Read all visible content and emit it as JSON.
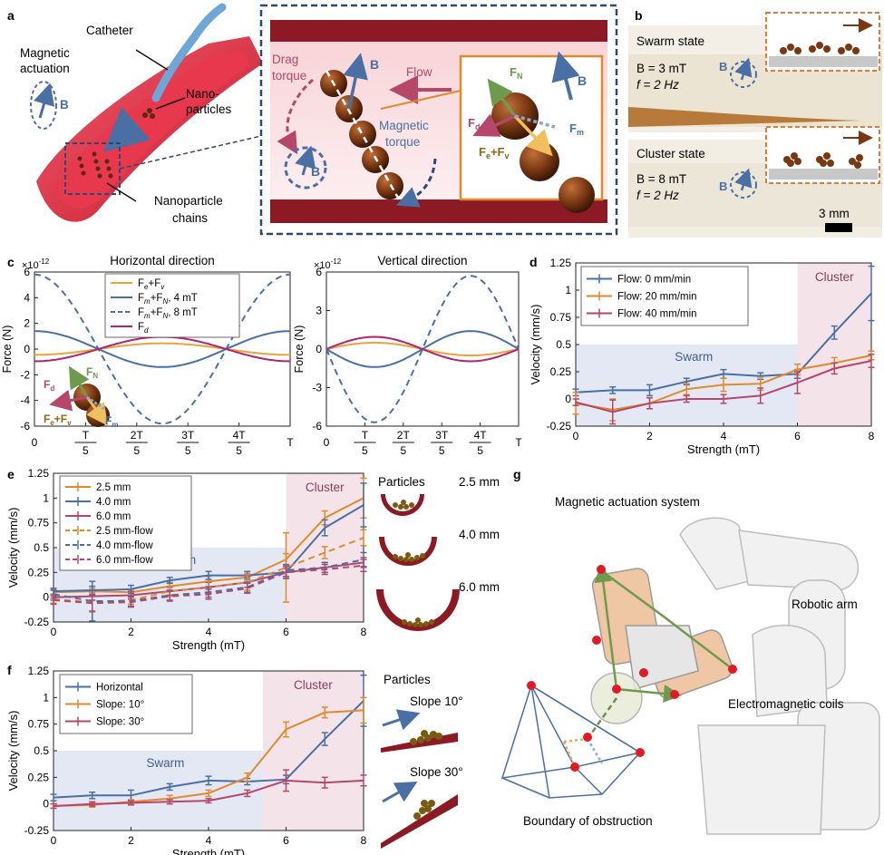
{
  "panel_letters": {
    "a": "a",
    "b": "b",
    "c": "c",
    "d": "d",
    "e": "e",
    "f": "f",
    "g": "g"
  },
  "panel_a": {
    "catheter": "Catheter",
    "magnetic_actuation_line1": "Magnetic",
    "magnetic_actuation_line2": "actuation",
    "b_symbol": "B",
    "nano_line1": "Nano-",
    "nano_line2": "particles",
    "chains_line1": "Nanoparticle",
    "chains_line2": "chains",
    "drag_line1": "Drag",
    "drag_line2": "torque",
    "flow": "Flow",
    "magnetic_torque_line1": "Magnetic",
    "magnetic_torque_line2": "torque",
    "fn": "F",
    "fn_sub": "N",
    "fd": "F",
    "fd_sub": "d",
    "fm": "F",
    "fm_sub": "m",
    "fefv": "F",
    "fefv_sub1": "e",
    "fefv_plus": "+F",
    "fefv_sub2": "v"
  },
  "panel_b": {
    "swarm_state": "Swarm state",
    "swarm_B": "B = 3 mT",
    "swarm_f": "f = 2 Hz",
    "cluster_state": "Cluster state",
    "cluster_B": "B = 8 mT",
    "cluster_f": "f = 2 Hz",
    "b_symbol": "B",
    "scale": "3 mm"
  },
  "panel_g": {
    "title": "Magnetic actuation system",
    "robotic_arm": "Robotic arm",
    "coils": "Electromagnetic coils",
    "boundary": "Boundary of obstruction"
  },
  "chart_data": [
    {
      "id": "c-horizontal",
      "type": "line",
      "title": "Horizontal direction",
      "ylabel": "Force (N)",
      "exponent": "×10",
      "exponent_power": "-12",
      "ylim": [
        -6,
        6
      ],
      "yticks": [
        "6",
        "4",
        "2",
        "0",
        "-2",
        "-4",
        "-6"
      ],
      "xticks": [
        {
          "num": "0",
          "den": ""
        },
        {
          "num": "T",
          "den": "5"
        },
        {
          "num": "2T",
          "den": "5"
        },
        {
          "num": "3T",
          "den": "5"
        },
        {
          "num": "4T",
          "den": "5"
        },
        {
          "num": "T",
          "den": ""
        }
      ],
      "series": [
        {
          "name": "Fe+Fv",
          "amp": 0.45,
          "phase_deg": -90,
          "style": "solid",
          "color": "#e8a33c"
        },
        {
          "name": "Fm+FN, 4 mT",
          "amp": 1.4,
          "phase_deg": 90,
          "style": "solid",
          "color": "#4a6fa5"
        },
        {
          "name": "Fm+FN, 8 mT",
          "amp": 5.8,
          "phase_deg": 90,
          "style": "dashed",
          "color": "#4a6fa5"
        },
        {
          "name": "Fd",
          "amp": 0.95,
          "phase_deg": -90,
          "style": "solid",
          "color": "#b0246d"
        }
      ],
      "legend": {
        "l1a": "F",
        "l1s1": "e",
        "l1b": "+F",
        "l1s2": "v",
        "l2a": "F",
        "l2s1": "m",
        "l2b": "+F",
        "l2s2": "N",
        "l2c": ", 4 mT",
        "l3a": "F",
        "l3s1": "m",
        "l3b": "+F",
        "l3s2": "N",
        "l3c": ", 8 mT",
        "l4a": "F",
        "l4s1": "d"
      },
      "inset": {
        "fn": "F",
        "fn_sub": "N",
        "fd": "F",
        "fd_sub": "d",
        "fm": "F",
        "fm_sub": "m",
        "fefv": "F",
        "fefv_sub1": "e",
        "fefv_plus": "+F",
        "fefv_sub2": "v"
      }
    },
    {
      "id": "c-vertical",
      "type": "line",
      "title": "Vertical direction",
      "ylabel": "Force (N)",
      "exponent": "×10",
      "exponent_power": "-12",
      "ylim": [
        -6,
        6
      ],
      "yticks": [
        "6",
        "3",
        "0",
        "-3",
        "-6"
      ],
      "xticks": [
        {
          "num": "0",
          "den": ""
        },
        {
          "num": "T",
          "den": "5"
        },
        {
          "num": "2T",
          "den": "5"
        },
        {
          "num": "3T",
          "den": "5"
        },
        {
          "num": "4T",
          "den": "5"
        },
        {
          "num": "T",
          "den": ""
        }
      ],
      "series": [
        {
          "name": "Fe+Fv",
          "amp": 0.5,
          "phase_deg": 0,
          "style": "solid",
          "color": "#e8a33c"
        },
        {
          "name": "Fm+FN, 4 mT",
          "amp": 1.4,
          "phase_deg": 180,
          "style": "solid",
          "color": "#4a6fa5"
        },
        {
          "name": "Fm+FN, 8 mT",
          "amp": 5.7,
          "phase_deg": 180,
          "style": "dashed",
          "color": "#4a6fa5"
        },
        {
          "name": "Fd",
          "amp": 0.95,
          "phase_deg": 0,
          "style": "solid",
          "color": "#b0246d"
        }
      ]
    },
    {
      "id": "d",
      "type": "line",
      "xlabel": "Strength (mT)",
      "ylabel": "Velocity (mm/s)",
      "xlim": [
        0,
        8
      ],
      "ylim": [
        -0.25,
        1.25
      ],
      "xticks": [
        "0",
        "2",
        "4",
        "6",
        "8"
      ],
      "yticks": [
        "-0.25",
        "0",
        "0.25",
        "0.5",
        "0.75",
        "1",
        "1.25"
      ],
      "regions": {
        "swarm": "Swarm",
        "cluster": "Cluster",
        "swarm_range": [
          0,
          6
        ],
        "swarm_top": 0.5,
        "cluster_range": [
          6,
          8
        ]
      },
      "x": [
        0,
        1,
        2,
        3,
        4,
        5,
        6,
        7,
        8
      ],
      "series": [
        {
          "name": "Flow: 0 mm/min",
          "color": "#4a6fa5",
          "style": "solid",
          "values": [
            0.06,
            0.08,
            0.08,
            0.16,
            0.23,
            0.21,
            0.23,
            0.61,
            0.97
          ],
          "err": [
            0.03,
            0.03,
            0.05,
            0.03,
            0.04,
            0.03,
            0.04,
            0.06,
            0.25
          ]
        },
        {
          "name": "Flow: 20 mm/min",
          "color": "#e08a2c",
          "style": "solid",
          "values": [
            -0.04,
            -0.1,
            -0.04,
            0.09,
            0.13,
            0.14,
            0.27,
            0.33,
            0.4
          ],
          "err": [
            0.1,
            0.1,
            0.05,
            0.05,
            0.06,
            0.06,
            0.05,
            0.05,
            0.04
          ]
        },
        {
          "name": "Flow: 40 mm/min",
          "color": "#b5476b",
          "style": "solid",
          "values": [
            -0.03,
            -0.12,
            -0.04,
            0.0,
            0.0,
            0.03,
            0.15,
            0.28,
            0.35
          ],
          "err": [
            0.03,
            0.11,
            0.05,
            0.03,
            0.04,
            0.07,
            0.1,
            0.05,
            0.06
          ]
        }
      ]
    },
    {
      "id": "e",
      "type": "line",
      "xlabel": "Strength (mT)",
      "ylabel": "Velocity (mm/s)",
      "xlim": [
        0,
        8
      ],
      "ylim": [
        -0.25,
        1.25
      ],
      "xticks": [
        "0",
        "2",
        "4",
        "6",
        "8"
      ],
      "yticks": [
        "-0.25",
        "0",
        "0.25",
        "0.5",
        "0.75",
        "1",
        "1.25"
      ],
      "regions": {
        "swarm": "Swarm",
        "cluster": "Cluster",
        "swarm_range": [
          0,
          6
        ],
        "swarm_top": 0.5,
        "cluster_range": [
          6,
          8
        ]
      },
      "x": [
        0,
        1,
        2,
        3,
        4,
        5,
        6,
        7,
        8
      ],
      "series": [
        {
          "name": "2.5 mm",
          "color": "#e08a2c",
          "style": "solid",
          "values": [
            0.05,
            0.06,
            0.05,
            0.11,
            0.16,
            0.2,
            0.38,
            0.8,
            1.0
          ],
          "err": [
            0.03,
            0.03,
            0.03,
            0.04,
            0.05,
            0.04,
            0.06,
            0.07,
            0.2
          ]
        },
        {
          "name": "4.0 mm",
          "color": "#4a6fa5",
          "style": "solid",
          "values": [
            0.06,
            0.07,
            0.08,
            0.17,
            0.22,
            0.22,
            0.25,
            0.7,
            0.93
          ],
          "err": [
            0.03,
            0.04,
            0.04,
            0.03,
            0.04,
            0.04,
            0.04,
            0.08,
            0.22
          ]
        },
        {
          "name": "6.0 mm",
          "color": "#b5476b",
          "style": "solid",
          "values": [
            0.0,
            0.01,
            0.02,
            0.06,
            0.1,
            0.15,
            0.25,
            0.3,
            0.35
          ],
          "err": [
            0.03,
            0.04,
            0.04,
            0.04,
            0.05,
            0.05,
            0.06,
            0.05,
            0.05
          ]
        },
        {
          "name": "2.5 mm-flow",
          "color": "#e08a2c",
          "style": "dashed",
          "values": [
            -0.02,
            -0.05,
            -0.03,
            0.06,
            0.1,
            0.15,
            0.3,
            0.45,
            0.6
          ],
          "err": [
            0.04,
            0.1,
            0.04,
            0.05,
            0.06,
            0.08,
            0.35,
            0.06,
            0.08
          ]
        },
        {
          "name": "4.0 mm-flow",
          "color": "#4a6fa5",
          "style": "dashed",
          "values": [
            0.03,
            -0.04,
            -0.04,
            0.02,
            0.05,
            0.1,
            0.27,
            0.3,
            0.38
          ],
          "err": [
            0.04,
            0.2,
            0.05,
            0.05,
            0.05,
            0.05,
            0.06,
            0.05,
            0.07
          ]
        },
        {
          "name": "6.0 mm-flow",
          "color": "#b5476b",
          "style": "dashed",
          "values": [
            -0.03,
            -0.06,
            -0.05,
            0.01,
            0.03,
            0.09,
            0.25,
            0.28,
            0.32
          ],
          "err": [
            0.04,
            0.08,
            0.05,
            0.05,
            0.05,
            0.05,
            0.06,
            0.05,
            0.06
          ]
        }
      ],
      "side": {
        "particles": "Particles",
        "s1": "2.5 mm",
        "s2": "4.0 mm",
        "s3": "6.0 mm"
      }
    },
    {
      "id": "f",
      "type": "line",
      "xlabel": "Strength (mT)",
      "ylabel": "Velocity (mm/s)",
      "xlim": [
        0,
        8
      ],
      "ylim": [
        -0.25,
        1.25
      ],
      "xticks": [
        "0",
        "2",
        "4",
        "6",
        "8"
      ],
      "yticks": [
        "-0.25",
        "0",
        "0.25",
        "0.5",
        "0.75",
        "1",
        "1.25"
      ],
      "regions": {
        "swarm": "Swarm",
        "cluster": "Cluster",
        "swarm_range": [
          0,
          5.4
        ],
        "swarm_top": 0.5,
        "cluster_range": [
          5.4,
          8
        ]
      },
      "x": [
        0,
        1,
        2,
        3,
        4,
        5,
        6,
        7,
        8
      ],
      "series": [
        {
          "name": "Horizontal",
          "color": "#4a6fa5",
          "style": "solid",
          "values": [
            0.06,
            0.08,
            0.08,
            0.16,
            0.22,
            0.21,
            0.23,
            0.61,
            0.97
          ],
          "err": [
            0.03,
            0.03,
            0.05,
            0.03,
            0.04,
            0.03,
            0.04,
            0.06,
            0.24
          ]
        },
        {
          "name": "Slope: 10°",
          "color": "#e08a2c",
          "style": "solid",
          "values": [
            -0.02,
            -0.01,
            0.02,
            0.05,
            0.1,
            0.25,
            0.7,
            0.86,
            0.88
          ],
          "err": [
            0.02,
            0.02,
            0.02,
            0.03,
            0.03,
            0.04,
            0.07,
            0.05,
            0.12
          ]
        },
        {
          "name": "Slope: 30°",
          "color": "#b5476b",
          "style": "solid",
          "values": [
            -0.02,
            0.0,
            0.01,
            0.02,
            0.03,
            0.1,
            0.22,
            0.2,
            0.22
          ],
          "err": [
            0.02,
            0.02,
            0.02,
            0.02,
            0.02,
            0.03,
            0.1,
            0.05,
            0.05
          ]
        }
      ],
      "side": {
        "particles": "Particles",
        "s1": "Slope 10°",
        "s2": "Slope 30°"
      }
    }
  ]
}
